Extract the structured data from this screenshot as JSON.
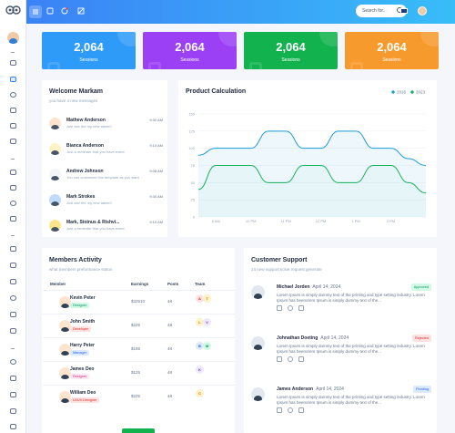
{
  "topbar": {
    "search_placeholder": "Search for..."
  },
  "stats": [
    {
      "value": "2,064",
      "label": "Sessions",
      "color": "#2f9bf8"
    },
    {
      "value": "2,064",
      "label": "Sessions",
      "color": "#9b40f5"
    },
    {
      "value": "2,064",
      "label": "Sessions",
      "color": "#12b34f"
    },
    {
      "value": "2,064",
      "label": "Sessions",
      "color": "#f79a2d"
    }
  ],
  "welcome": {
    "title": "Welcome Markam",
    "subtitle": "you have 4 new messages",
    "messages": [
      {
        "name": "Mathew Anderson",
        "time": "9:30 AM",
        "text": "Just see the my new admin!"
      },
      {
        "name": "Bianca Anderson",
        "time": "9:10 AM",
        "text": "Just a reminder that you have event"
      },
      {
        "name": "Andrew Johnson",
        "time": "9:08 AM",
        "text": "You can customize this template as you want"
      },
      {
        "name": "Mark Strokes",
        "time": "9:30 AM",
        "text": "Just see the my new admin!"
      },
      {
        "name": "Mark, Stoinus & Rishvi...",
        "time": "9:10 AM",
        "text": "Just a reminder that you have event"
      }
    ]
  },
  "product": {
    "title": "Product Calculation"
  },
  "chart_data": {
    "type": "area",
    "title": "Product Calculation",
    "x": [
      "",
      "9 AM",
      "",
      "10 PM",
      "",
      "11 PM",
      "",
      "12 PM",
      "",
      "1 PM",
      "",
      "2 PM",
      "",
      ""
    ],
    "series": [
      {
        "name": "2016",
        "color": "#1e9bd7",
        "values": [
          90,
          100,
          100,
          100,
          125,
          125,
          100,
          100,
          125,
          125,
          100,
          100,
          85,
          75
        ]
      },
      {
        "name": "2023",
        "color": "#13b15a",
        "values": [
          40,
          75,
          75,
          75,
          50,
          50,
          75,
          75,
          50,
          50,
          75,
          75,
          50,
          35
        ]
      }
    ],
    "yticks": [
      0,
      25,
      50,
      75,
      100,
      125,
      150
    ],
    "ylim": [
      0,
      150
    ],
    "xtick_labels": [
      "9 AM",
      "10 PM",
      "11 PM",
      "12 PM",
      "1 PM"
    ]
  },
  "members": {
    "title": "Members Activity",
    "subtitle": "what members preformance status",
    "headers": [
      "Member",
      "Earnings",
      "Posts",
      "Team"
    ],
    "rows": [
      {
        "name": "Kevin Peter",
        "role": "Designer",
        "role_color": "#d1fae5",
        "role_text": "#059669",
        "earnings": "$32510",
        "posts": "48",
        "team": [
          {
            "l": "A",
            "bg": "#fee2e2",
            "fg": "#dc2626"
          },
          {
            "l": "T",
            "bg": "#fef3c7",
            "fg": "#d97706"
          }
        ]
      },
      {
        "name": "John Smith",
        "role": "Developer",
        "role_color": "#fee2e2",
        "role_text": "#dc2626",
        "earnings": "$225",
        "posts": "48",
        "team": [
          {
            "l": "L",
            "bg": "#fef3c7",
            "fg": "#d97706"
          },
          {
            "l": "V",
            "bg": "#ede9fe",
            "fg": "#7c3aed"
          }
        ]
      },
      {
        "name": "Harry Peter",
        "role": "Manager",
        "role_color": "#dbeafe",
        "role_text": "#2563eb",
        "earnings": "$185",
        "posts": "48",
        "team": [
          {
            "l": "B",
            "bg": "#dbeafe",
            "fg": "#2563eb"
          },
          {
            "l": "M",
            "bg": "#d1fae5",
            "fg": "#059669"
          }
        ]
      },
      {
        "name": "James Deo",
        "role": "Designer",
        "role_color": "#fce7f3",
        "role_text": "#db2777",
        "earnings": "$125",
        "posts": "48",
        "team": [
          {
            "l": "K",
            "bg": "#ede9fe",
            "fg": "#7c3aed"
          }
        ]
      },
      {
        "name": "William Deo",
        "role": "UI/UX Designer",
        "role_color": "#fee2e2",
        "role_text": "#dc2626",
        "earnings": "$225",
        "posts": "48",
        "team": [
          {
            "l": "C",
            "bg": "#fef3c7",
            "fg": "#d97706"
          }
        ]
      }
    ]
  },
  "support": {
    "title": "Customer Support",
    "subtitle": "24 new support ticket request generate",
    "tickets": [
      {
        "name": "Michael Jorden",
        "date": "April 14, 2024",
        "status": "Approved",
        "bg": "#d1fae5",
        "fg": "#059669",
        "text": "Lorem Ipsum is simply dummy text of the printing and type setting industry. Lorem Ipsum has beenorem Ipsum is simply dummy text of the..."
      },
      {
        "name": "Johnathan Doeting",
        "date": "April 14, 2024",
        "status": "Rejected",
        "bg": "#fee2e2",
        "fg": "#dc2626",
        "text": "Lorem Ipsum is simply dummy text of the printing and type setting industry. Lorem Ipsum has beenorem Ipsum is simply dummy text of the..."
      },
      {
        "name": "James Anderson",
        "date": "April 14, 2024",
        "status": "Pending",
        "bg": "#dbeafe",
        "fg": "#2563eb",
        "text": "Lorem Ipsum is simply dummy text of the printing and type setting industry. Lorem Ipsum has beenorem Ipsum is simply dummy text of the..."
      }
    ]
  }
}
